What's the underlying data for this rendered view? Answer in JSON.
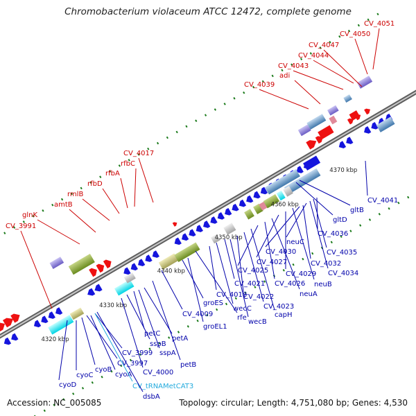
{
  "title": "Chromobacterium violaceum ATCC 12472, complete genome",
  "footer": {
    "accession": "Accession: NC_005085",
    "summary": "Topology: circular; Length: 4,751,080 bp; Genes: 4,530"
  },
  "colors": {
    "backbone": "#8c8c8c",
    "red_label": "#cc0000",
    "blue_label": "#0000aa",
    "trna_label": "#22aadd",
    "forward_gene": "#ee1111",
    "reverse_gene": "#1515dd",
    "tick": "#1a7a1a"
  },
  "kbp_labels": [
    "4320 kbp",
    "4330 kbp",
    "4340 kbp",
    "4350 kbp",
    "4360 kbp",
    "4370 kbp"
  ],
  "top_labels": [
    "CV_3991",
    "glnK",
    "amtB",
    "rmlB",
    "rfbD",
    "rfbA",
    "rfbC",
    "CV_4017",
    "CV_4039",
    "adi",
    "CV_4043",
    "CV_4044",
    "CV_4047",
    "CV_4050",
    "CV_4051"
  ],
  "bottom_labels": [
    "cyoD",
    "cyoC",
    "cyoB",
    "CV_3997",
    "cyoA",
    "CV_3999",
    "CV_tRNAMetCAT3",
    "dsbA",
    "CV_4000",
    "sspB",
    "petC",
    "sspA",
    "petA",
    "petB",
    "CV_4009",
    "groES",
    "groEL1",
    "rfe",
    "CV_4018",
    "wecC",
    "CV_4021",
    "wecB",
    "CV_4022",
    "CV_4023",
    "capH",
    "CV_4025",
    "CV_4026",
    "neuA",
    "CV_4027",
    "CV_4029",
    "neuB",
    "CV_4030",
    "CV_4032",
    "neuC",
    "CV_4034",
    "CV_4035",
    "CV_4036",
    "gltD",
    "gltB",
    "CV_4041"
  ]
}
